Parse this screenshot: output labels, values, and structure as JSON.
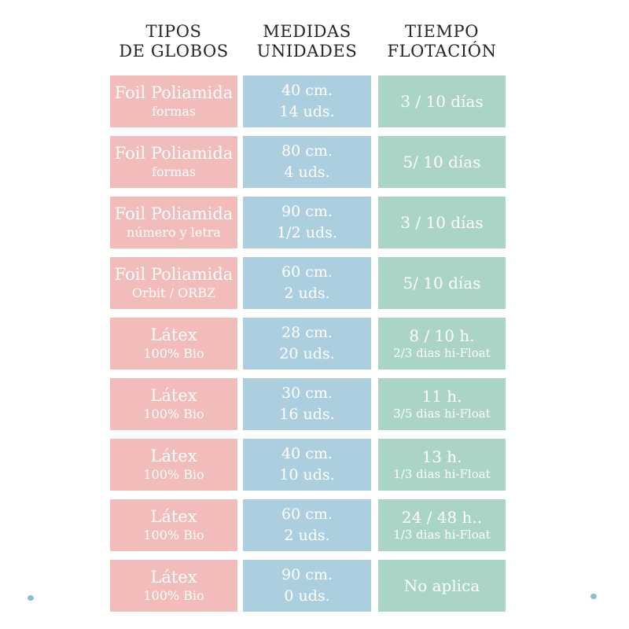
{
  "colors": {
    "background": "#ffffff",
    "type_box": "#f1bcba",
    "size_box": "#accfdf",
    "float_box": "#a9d4c6",
    "box_text": "#ffffff",
    "header_text": "#262626",
    "dot": "#8bbcd0"
  },
  "headers": [
    {
      "line1": "TIPOS",
      "line2": "DE GLOBOS"
    },
    {
      "line1": "MEDIDAS",
      "line2": "UNIDADES"
    },
    {
      "line1": "TIEMPO",
      "line2": "FLOTACIÓN"
    }
  ],
  "rows": [
    {
      "type_main": "Foil Poliamida",
      "type_sub": "formas",
      "size_main": "40 cm.",
      "size_sub": "14 uds.",
      "float_main": "3 / 10 días",
      "float_sub": ""
    },
    {
      "type_main": "Foil Poliamida",
      "type_sub": "formas",
      "size_main": "80 cm.",
      "size_sub": "4 uds.",
      "float_main": "5/ 10 días",
      "float_sub": ""
    },
    {
      "type_main": "Foil Poliamida",
      "type_sub": "número y letra",
      "size_main": "90 cm.",
      "size_sub": "1/2 uds.",
      "float_main": "3 / 10 días",
      "float_sub": ""
    },
    {
      "type_main": "Foil Poliamida",
      "type_sub": "Orbit / ORBZ",
      "size_main": "60 cm.",
      "size_sub": "2 uds.",
      "float_main": "5/ 10 días",
      "float_sub": ""
    },
    {
      "type_main": "Látex",
      "type_sub": "100% Bio",
      "size_main": "28 cm.",
      "size_sub": "20 uds.",
      "float_main": "8 / 10 h.",
      "float_sub": "2/3 dias hi-Float"
    },
    {
      "type_main": "Látex",
      "type_sub": "100% Bio",
      "size_main": "30 cm.",
      "size_sub": "16 uds.",
      "float_main": "11 h.",
      "float_sub": "3/5 dias hi-Float"
    },
    {
      "type_main": "Látex",
      "type_sub": "100% Bio",
      "size_main": "40 cm.",
      "size_sub": "10 uds.",
      "float_main": "13 h.",
      "float_sub": "1/3 dias hi-Float"
    },
    {
      "type_main": "Látex",
      "type_sub": "100% Bio",
      "size_main": "60 cm.",
      "size_sub": "2 uds.",
      "float_main": "24 / 48 h..",
      "float_sub": "1/3 dias hi-Float"
    },
    {
      "type_main": "Látex",
      "type_sub": "100% Bio",
      "size_main": "90 cm.",
      "size_sub": "0 uds.",
      "float_main": "No aplica",
      "float_sub": ""
    }
  ],
  "chart_data": {
    "type": "table",
    "title": "",
    "columns": [
      "TIPOS DE GLOBOS",
      "MEDIDAS UNIDADES",
      "TIEMPO FLOTACIÓN"
    ],
    "rows": [
      [
        "Foil Poliamida — formas",
        "40 cm. / 14 uds.",
        "3 / 10 días"
      ],
      [
        "Foil Poliamida — formas",
        "80 cm. / 4 uds.",
        "5/ 10 días"
      ],
      [
        "Foil Poliamida — número y letra",
        "90 cm. / 1/2 uds.",
        "3 / 10 días"
      ],
      [
        "Foil Poliamida — Orbit / ORBZ",
        "60 cm. / 2 uds.",
        "5/ 10 días"
      ],
      [
        "Látex — 100% Bio",
        "28 cm. / 20 uds.",
        "8 / 10 h. — 2/3 dias hi-Float"
      ],
      [
        "Látex — 100% Bio",
        "30 cm. / 16 uds.",
        "11 h. — 3/5 dias hi-Float"
      ],
      [
        "Látex — 100% Bio",
        "40 cm. / 10 uds.",
        "13 h. — 1/3 dias hi-Float"
      ],
      [
        "Látex — 100% Bio",
        "60 cm. / 2 uds.",
        "24 / 48 h.. — 1/3 dias hi-Float"
      ],
      [
        "Látex — 100% Bio",
        "90 cm. / 0 uds.",
        "No aplica"
      ]
    ],
    "layout": {
      "column_colors": [
        "#f1bcba",
        "#accfdf",
        "#a9d4c6"
      ],
      "grid": false,
      "legend": "none"
    }
  }
}
